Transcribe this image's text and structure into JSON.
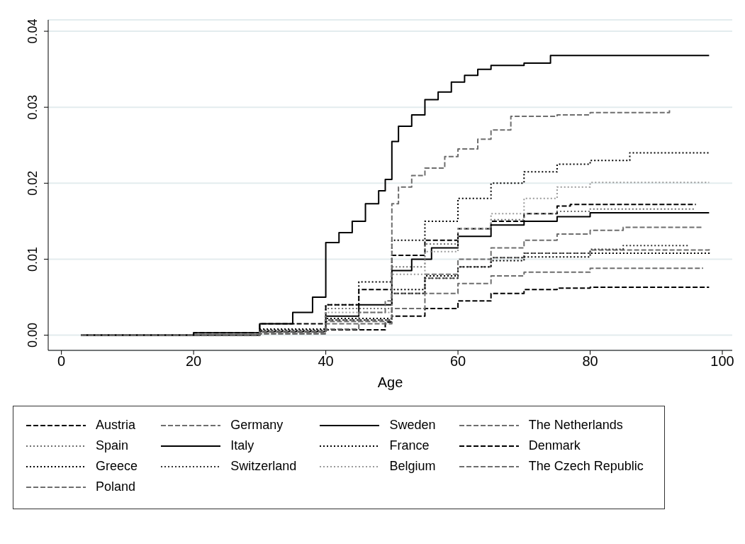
{
  "chart_data": {
    "type": "step",
    "xlabel": "Age",
    "xlim": [
      -2,
      101.5
    ],
    "xticks": [
      0,
      20,
      40,
      60,
      80,
      100
    ],
    "ylim": [
      -0.002,
      0.0415
    ],
    "yticks": [
      {
        "value": 0,
        "label": "0.00"
      },
      {
        "value": 0.01,
        "label": "0.01"
      },
      {
        "value": 0.02,
        "label": "0.02"
      },
      {
        "value": 0.03,
        "label": "0.03"
      },
      {
        "value": 0.04,
        "label": "0.04"
      }
    ],
    "grid": "y",
    "legend": "bottom",
    "series": [
      {
        "name": "Austria",
        "color": "#000000",
        "line_style": "dashed",
        "x": [
          3,
          20,
          30,
          40,
          45,
          50,
          55,
          60,
          65,
          70,
          75,
          77,
          96
        ],
        "values": [
          0,
          0.0003,
          0.0015,
          0.004,
          0.006,
          0.0105,
          0.0125,
          0.014,
          0.015,
          0.016,
          0.017,
          0.0172,
          0.0172
        ]
      },
      {
        "name": "Germany",
        "color": "#6e6e6e",
        "line_style": "dashed",
        "x": [
          3,
          30,
          40,
          50,
          55,
          60,
          65,
          70,
          80,
          98
        ],
        "values": [
          0,
          0.0005,
          0.002,
          0.0055,
          0.0075,
          0.009,
          0.0102,
          0.0108,
          0.0112,
          0.0115
        ]
      },
      {
        "name": "Sweden",
        "color": "#000000",
        "line_style": "solid",
        "x": [
          3,
          20,
          30,
          35,
          38,
          40,
          42,
          44,
          46,
          48,
          49,
          50,
          51,
          53,
          55,
          57,
          59,
          61,
          63,
          65,
          70,
          74,
          98
        ],
        "values": [
          0,
          0.0003,
          0.0015,
          0.003,
          0.005,
          0.0122,
          0.0135,
          0.015,
          0.0173,
          0.019,
          0.0205,
          0.0255,
          0.0275,
          0.029,
          0.031,
          0.032,
          0.0333,
          0.0342,
          0.035,
          0.0355,
          0.0358,
          0.0368,
          0.0368
        ]
      },
      {
        "name": "The Netherlands",
        "color": "#6e6e6e",
        "line_style": "dashed",
        "x": [
          3,
          30,
          40,
          50,
          55,
          60,
          65,
          70,
          75,
          80,
          85,
          97
        ],
        "values": [
          0,
          0.0004,
          0.0018,
          0.0055,
          0.008,
          0.01,
          0.0115,
          0.0125,
          0.0133,
          0.0138,
          0.0142,
          0.0142
        ]
      },
      {
        "name": "Spain",
        "color": "#6e6e6e",
        "line_style": "dotted",
        "x": [
          3,
          30,
          40,
          50,
          55,
          60,
          65,
          70,
          75,
          80,
          96
        ],
        "values": [
          0,
          0.0007,
          0.0035,
          0.009,
          0.012,
          0.014,
          0.0152,
          0.016,
          0.0163,
          0.0166,
          0.0166
        ]
      },
      {
        "name": "Italy",
        "color": "#000000",
        "line_style": "solid",
        "x": [
          3,
          30,
          40,
          45,
          50,
          53,
          56,
          60,
          65,
          70,
          75,
          80,
          98
        ],
        "values": [
          0,
          0.0005,
          0.0025,
          0.004,
          0.0085,
          0.01,
          0.0115,
          0.013,
          0.0145,
          0.015,
          0.0156,
          0.0161,
          0.0161
        ]
      },
      {
        "name": "France",
        "color": "#000000",
        "line_style": "dotted",
        "x": [
          3,
          30,
          40,
          45,
          50,
          55,
          60,
          65,
          70,
          75,
          80,
          86,
          98
        ],
        "values": [
          0,
          0.0008,
          0.004,
          0.007,
          0.0125,
          0.015,
          0.018,
          0.02,
          0.0215,
          0.0225,
          0.023,
          0.024,
          0.024
        ]
      },
      {
        "name": "Denmark",
        "color": "#000000",
        "line_style": "dashed",
        "x": [
          3,
          30,
          40,
          49,
          50,
          55,
          60,
          65,
          70,
          75,
          80,
          98
        ],
        "values": [
          0,
          0.0002,
          0.0007,
          0.0017,
          0.0025,
          0.0035,
          0.0045,
          0.0055,
          0.006,
          0.0062,
          0.0063,
          0.0063
        ]
      },
      {
        "name": "Greece",
        "color": "#000000",
        "line_style": "dotted",
        "x": [
          3,
          30,
          40,
          50,
          55,
          60,
          65,
          70,
          80,
          98
        ],
        "values": [
          0,
          0.0006,
          0.0022,
          0.006,
          0.0078,
          0.009,
          0.0098,
          0.0103,
          0.0108,
          0.0109
        ]
      },
      {
        "name": "Switzerland",
        "color": "#333333",
        "line_style": "dotted",
        "x": [
          3,
          30,
          40,
          50,
          55,
          60,
          65,
          70,
          80,
          85,
          95
        ],
        "values": [
          0,
          0.0005,
          0.002,
          0.0055,
          0.0075,
          0.009,
          0.0102,
          0.0108,
          0.0113,
          0.0118,
          0.0118
        ]
      },
      {
        "name": "Belgium",
        "color": "#9a9a9a",
        "line_style": "dotted",
        "x": [
          3,
          30,
          40,
          50,
          55,
          60,
          65,
          70,
          75,
          80,
          98
        ],
        "values": [
          0,
          0.0005,
          0.003,
          0.008,
          0.011,
          0.014,
          0.016,
          0.018,
          0.0195,
          0.0201,
          0.0201
        ]
      },
      {
        "name": "The Czech Republic",
        "color": "#6e6e6e",
        "line_style": "dashed",
        "x": [
          3,
          30,
          40,
          45,
          49,
          50,
          51,
          53,
          55,
          58,
          60,
          63,
          65,
          68,
          75,
          80,
          92
        ],
        "values": [
          0,
          0.0005,
          0.0015,
          0.003,
          0.0045,
          0.0173,
          0.0195,
          0.021,
          0.022,
          0.0235,
          0.0245,
          0.0258,
          0.027,
          0.0288,
          0.029,
          0.0293,
          0.0297
        ]
      },
      {
        "name": "Poland",
        "color": "#6e6e6e",
        "line_style": "dashed",
        "x": [
          3,
          30,
          40,
          45,
          50,
          55,
          60,
          65,
          70,
          80,
          97
        ],
        "values": [
          0,
          0.0002,
          0.0008,
          0.0015,
          0.0035,
          0.0055,
          0.0068,
          0.0078,
          0.0083,
          0.0088,
          0.0089
        ]
      }
    ]
  }
}
